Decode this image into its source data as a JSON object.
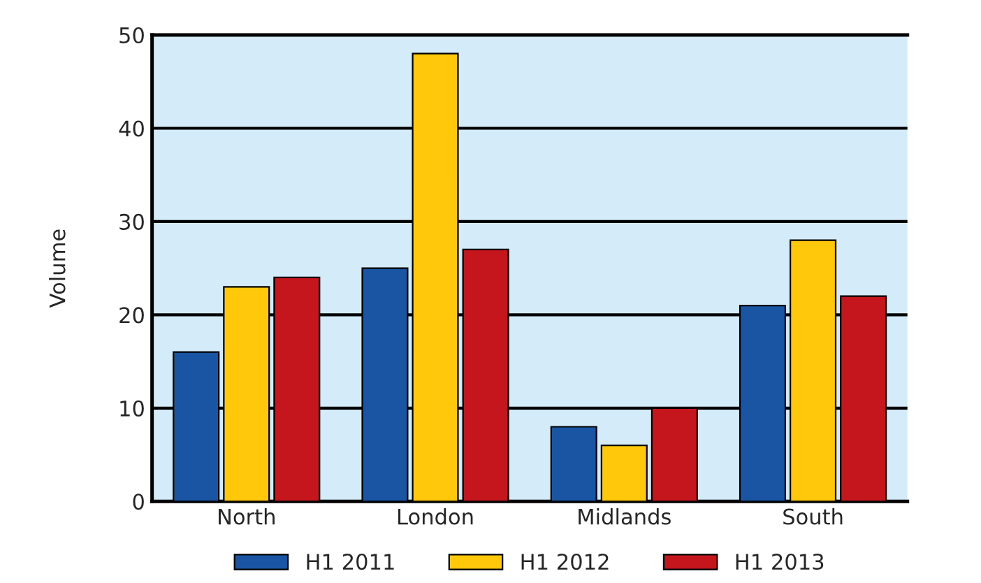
{
  "chart_data": {
    "type": "bar",
    "ylabel": "Volume",
    "categories": [
      "North",
      "London",
      "Midlands",
      "South"
    ],
    "series": [
      {
        "name": "H1 2011",
        "color": "#1a55a3",
        "values": [
          16,
          25,
          8,
          21
        ]
      },
      {
        "name": "H1 2012",
        "color": "#ffc80a",
        "values": [
          23,
          48,
          6,
          28
        ]
      },
      {
        "name": "H1 2013",
        "color": "#c4161c",
        "values": [
          24,
          27,
          10,
          22
        ]
      }
    ],
    "ylim": [
      0,
      50
    ],
    "yticks": [
      0,
      10,
      20,
      30,
      40,
      50
    ],
    "grid": "y",
    "legend": "bottom"
  }
}
